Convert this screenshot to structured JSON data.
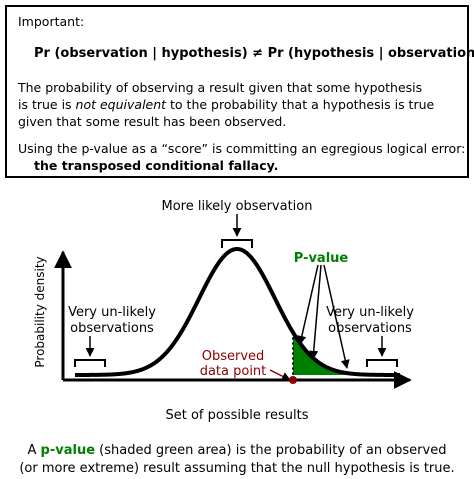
{
  "box": {
    "heading": "Important:",
    "equation": "Pr (observation | hypothesis) ≠ Pr (hypothesis | observation)",
    "para1_line1": "The probability of observing a result given that some hypothesis",
    "para1_line2_pre": "is true is ",
    "para1_line2_em": "not equivalent",
    "para1_line2_post": " to the probability that a hypothesis is true",
    "para1_line3": "given that some result has been observed.",
    "para2_line1": "Using the p-value as a “score” is committing an egregious logical error:",
    "para2_line2": "the transposed conditional fallacy."
  },
  "diagram": {
    "top_label": "More likely observation",
    "pvalue_label": "P-value",
    "left_label_line1": "Very un-likely",
    "left_label_line2": "observations",
    "right_label_line1": "Very un-likely",
    "right_label_line2": "observations",
    "observed_line1": "Observed",
    "observed_line2": "data point",
    "y_axis_label": "Probability density",
    "x_axis_label": "Set of possible results",
    "colors": {
      "curve": "#000000",
      "shade": "#008000",
      "observed": "#8b0000",
      "pvalue_text": "#008000"
    }
  },
  "caption": {
    "pre": "A ",
    "term": "p-value",
    "post": " (shaded green area) is the probability of an observed",
    "line2": "(or more extreme) result assuming that the null hypothesis is true."
  }
}
